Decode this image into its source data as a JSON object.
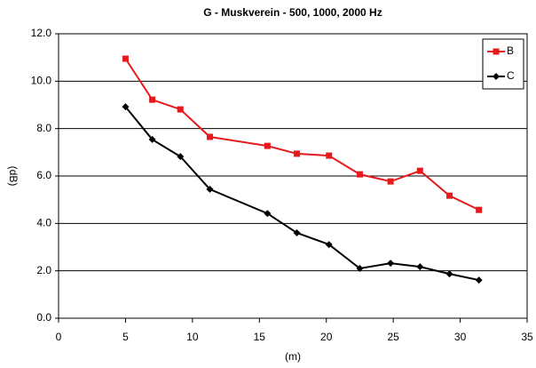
{
  "chart_data": {
    "type": "line",
    "title": "G - Muskverein - 500, 1000, 2000 Hz",
    "x_label": "(m)",
    "y_label": "(dB)",
    "xlim": [
      0,
      35
    ],
    "xticks": [
      0,
      5,
      10,
      15,
      20,
      25,
      30,
      35
    ],
    "ylim": [
      0,
      12
    ],
    "yticks": [
      {
        "value": 0,
        "label": "0.0"
      },
      {
        "value": 2,
        "label": "2.0"
      },
      {
        "value": 4,
        "label": "4.0"
      },
      {
        "value": 6,
        "label": "6.0"
      },
      {
        "value": 8,
        "label": "8.0"
      },
      {
        "value": 10,
        "label": "10.0"
      },
      {
        "value": 12,
        "label": "12.0"
      }
    ],
    "grid": true,
    "legend": "upper right",
    "x": [
      5,
      7,
      9.1,
      11.3,
      15.6,
      17.8,
      20.2,
      22.5,
      24.8,
      27,
      29.2,
      31.4
    ],
    "series": [
      {
        "name": "B",
        "color": "#e41a1c",
        "marker": "square",
        "values": [
          10.95,
          9.22,
          8.81,
          7.65,
          7.27,
          6.94,
          6.86,
          6.07,
          5.77,
          6.22,
          5.17,
          4.57
        ]
      },
      {
        "name": "C",
        "color": "#000000",
        "marker": "diamond",
        "values": [
          8.92,
          7.54,
          6.82,
          5.44,
          4.42,
          3.6,
          3.11,
          2.1,
          2.32,
          2.17,
          1.87,
          1.61
        ]
      }
    ]
  }
}
